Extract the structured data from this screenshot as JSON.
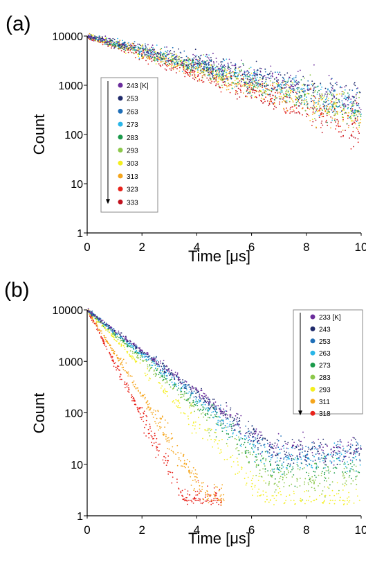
{
  "chart_data": [
    {
      "type": "scatter",
      "panel_label": "(a)",
      "xlabel": "Time [μs]",
      "ylabel": "Count",
      "yscale": "log",
      "xlim": [
        0,
        10
      ],
      "ylim": [
        1,
        10000
      ],
      "x_ticks": [
        "0",
        "2",
        "4",
        "6",
        "8",
        "10"
      ],
      "y_ticks": [
        "1",
        "10",
        "100",
        "1000",
        "10000"
      ],
      "legend": {
        "placement": "center-left",
        "arrow": "down",
        "unit": "[K]",
        "entries": [
          "243",
          "253",
          "263",
          "273",
          "283",
          "293",
          "303",
          "313",
          "323",
          "333"
        ]
      },
      "series": [
        {
          "name": "243",
          "color": "#6a2c9c",
          "x": [
            0,
            10
          ],
          "y": [
            10000,
            500
          ]
        },
        {
          "name": "253",
          "color": "#1f2a6b",
          "x": [
            0,
            10
          ],
          "y": [
            10000,
            430
          ]
        },
        {
          "name": "263",
          "color": "#1f6fb8",
          "x": [
            0,
            10
          ],
          "y": [
            10000,
            380
          ]
        },
        {
          "name": "273",
          "color": "#29b6e8",
          "x": [
            0,
            10
          ],
          "y": [
            10000,
            340
          ]
        },
        {
          "name": "283",
          "color": "#1a9a4a",
          "x": [
            0,
            10
          ],
          "y": [
            10000,
            300
          ]
        },
        {
          "name": "293",
          "color": "#8cc84b",
          "x": [
            0,
            10
          ],
          "y": [
            10000,
            270
          ]
        },
        {
          "name": "303",
          "color": "#f4ef1e",
          "x": [
            0,
            10
          ],
          "y": [
            10000,
            240
          ]
        },
        {
          "name": "313",
          "color": "#f5a51c",
          "x": [
            0,
            10
          ],
          "y": [
            10000,
            200
          ]
        },
        {
          "name": "323",
          "color": "#e8231b",
          "x": [
            0,
            10
          ],
          "y": [
            10000,
            160
          ]
        },
        {
          "name": "333",
          "color": "#c1121f",
          "x": [
            0,
            10
          ],
          "y": [
            10000,
            130
          ]
        }
      ]
    },
    {
      "type": "scatter",
      "panel_label": "(b)",
      "xlabel": "Time [μs]",
      "ylabel": "Count",
      "yscale": "log",
      "xlim": [
        0,
        10
      ],
      "ylim": [
        1,
        10000
      ],
      "x_ticks": [
        "0",
        "2",
        "4",
        "6",
        "8",
        "10"
      ],
      "y_ticks": [
        "1",
        "10",
        "100",
        "1000",
        "10000"
      ],
      "legend": {
        "placement": "top-right",
        "arrow": "down",
        "unit": "[K]",
        "entries": [
          "233",
          "243",
          "253",
          "263",
          "273",
          "283",
          "293",
          "311",
          "318"
        ]
      },
      "series": [
        {
          "name": "233",
          "color": "#6a2c9c",
          "tau_us": 1.1,
          "floor": 20,
          "x_end": 10
        },
        {
          "name": "243",
          "color": "#1f2a6b",
          "tau_us": 1.08,
          "floor": 18,
          "x_end": 10
        },
        {
          "name": "253",
          "color": "#1f6fb8",
          "tau_us": 1.05,
          "floor": 16,
          "x_end": 10
        },
        {
          "name": "263",
          "color": "#29b6e8",
          "tau_us": 1.0,
          "floor": 12,
          "x_end": 10
        },
        {
          "name": "273",
          "color": "#1a9a4a",
          "tau_us": 0.95,
          "floor": 8,
          "x_end": 10
        },
        {
          "name": "283",
          "color": "#8cc84b",
          "tau_us": 0.9,
          "floor": 5,
          "x_end": 10
        },
        {
          "name": "293",
          "color": "#f4ef1e",
          "tau_us": 0.78,
          "floor": 2,
          "x_end": 10
        },
        {
          "name": "311",
          "color": "#f5a51c",
          "tau_us": 0.52,
          "floor": 2,
          "x_end": 5
        },
        {
          "name": "318",
          "color": "#e8231b",
          "tau_us": 0.42,
          "floor": 2,
          "x_end": 4.9
        }
      ]
    }
  ]
}
